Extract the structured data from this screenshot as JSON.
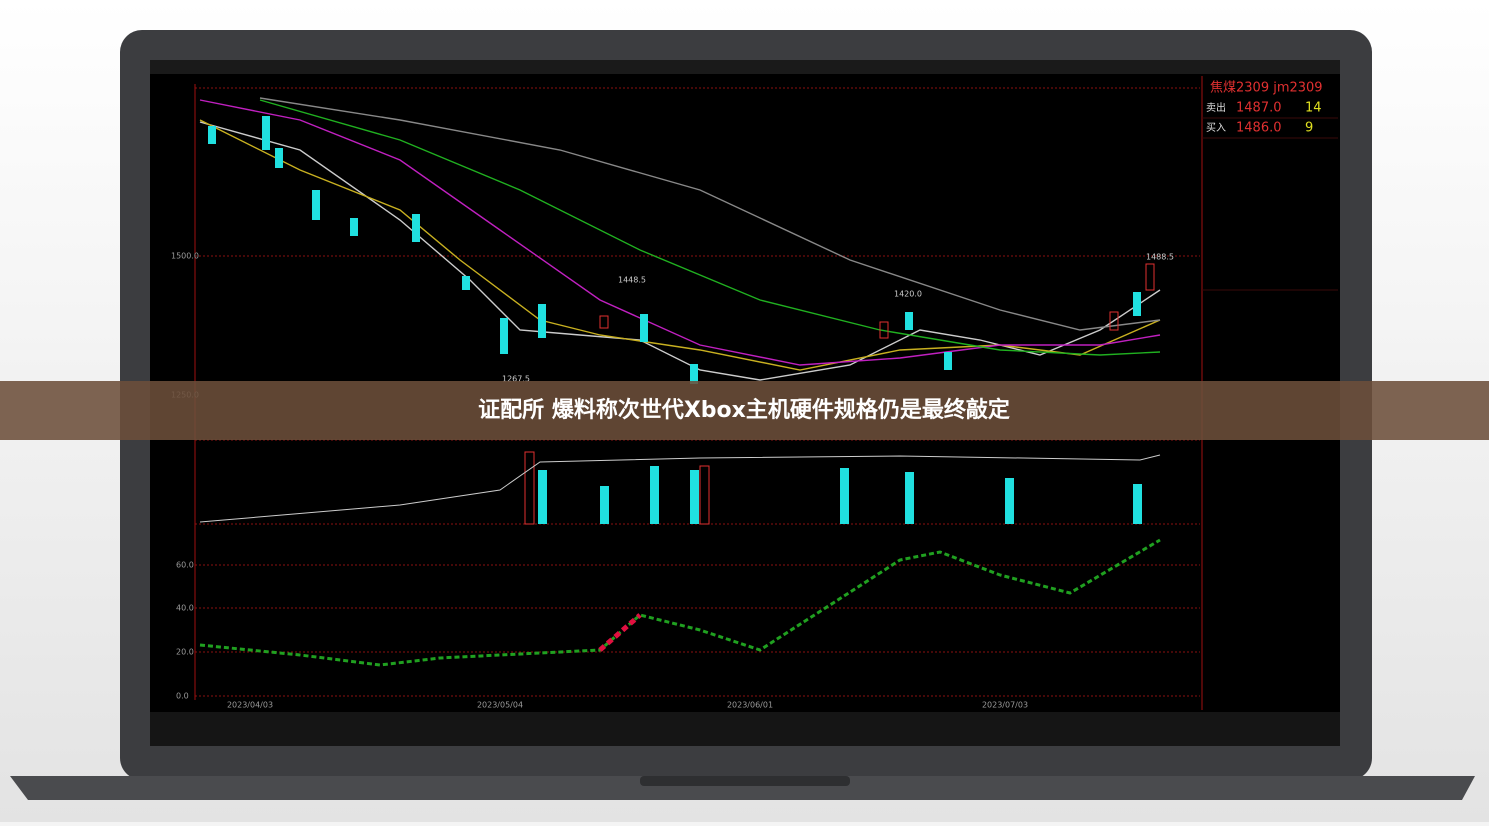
{
  "caption": "证配所 爆料称次世代Xbox主机硬件规格仍是最终敲定",
  "screen": {
    "instrument": "焦煤2309  jm2309",
    "quote": [
      [
        "卖出",
        "1487.0",
        "14"
      ],
      [
        "买入",
        "1486.0",
        "9"
      ]
    ],
    "price_axis": [
      "1500.0",
      "1250.0"
    ],
    "indicator_axis": [
      "60.0",
      "40.0",
      "20.0",
      "0.0"
    ],
    "dates": [
      "2023/04/03",
      "2023/05/04",
      "2023/06/01",
      "2023/07/03"
    ],
    "annotations": [
      "1448.5",
      "1420.0",
      "1488.5",
      "1267.5"
    ]
  }
}
